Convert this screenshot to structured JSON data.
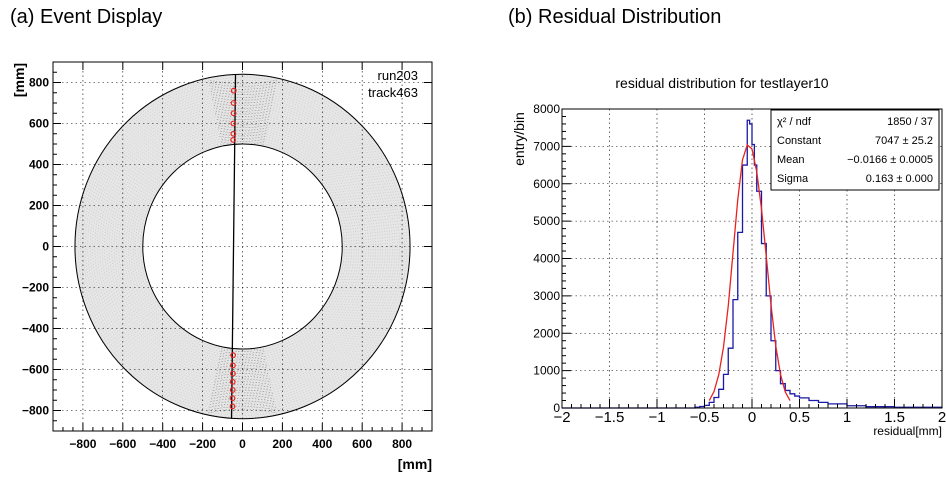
{
  "captions": {
    "a": "(a)  Event Display",
    "b": "(b) Residual Distribution"
  },
  "chart_data": [
    {
      "type": "scatter",
      "title": "",
      "xlabel": "[mm]",
      "ylabel": "[mm]",
      "xlim": [
        -950,
        950
      ],
      "ylim": [
        -900,
        900
      ],
      "xticks": [
        -800,
        -600,
        -400,
        -200,
        0,
        200,
        400,
        600,
        800
      ],
      "yticks": [
        -800,
        -600,
        -400,
        -200,
        0,
        200,
        400,
        600,
        800
      ],
      "grid": true,
      "annotations": [
        "run203",
        "track463"
      ],
      "chamber": {
        "inner_radius": 500,
        "outer_radius": 840
      },
      "track": {
        "x": [
          -35,
          -55
        ],
        "y": [
          840,
          -840
        ]
      },
      "hits": {
        "x": [
          -44,
          -45,
          -45,
          -46,
          -46,
          -47,
          -47,
          -48,
          -48,
          -49,
          -49,
          -50,
          -50
        ],
        "y": [
          760,
          700,
          650,
          600,
          550,
          520,
          -530,
          -580,
          -620,
          -660,
          -700,
          -740,
          -780
        ]
      }
    },
    {
      "type": "histogram",
      "title": "residual distribution for testlayer10",
      "xlabel": "residual[mm]",
      "ylabel": "entry/bin",
      "xlim": [
        -2,
        2
      ],
      "ylim": [
        0,
        8000
      ],
      "xticks": [
        -2,
        -1.5,
        -1,
        -0.5,
        0,
        0.5,
        1,
        1.5,
        2
      ],
      "yticks": [
        0,
        1000,
        2000,
        3000,
        4000,
        5000,
        6000,
        7000,
        8000
      ],
      "grid": true,
      "series": [
        {
          "x": [
            -0.6,
            -0.55,
            -0.5,
            -0.45,
            -0.4,
            -0.35,
            -0.3,
            -0.25,
            -0.2,
            -0.15,
            -0.1,
            -0.05,
            -0.025,
            0.0,
            0.025,
            0.05,
            0.1,
            0.15,
            0.2,
            0.25,
            0.3,
            0.35,
            0.4,
            0.45,
            0.5,
            0.6,
            0.7,
            0.8,
            1.0,
            1.2,
            1.5,
            2.0
          ],
          "y": [
            20,
            40,
            70,
            150,
            280,
            500,
            900,
            1600,
            2900,
            4700,
            6500,
            7700,
            7600,
            7050,
            6500,
            5800,
            4400,
            3000,
            1800,
            1000,
            650,
            470,
            380,
            320,
            270,
            200,
            150,
            110,
            60,
            35,
            20,
            10
          ]
        },
        {
          "x": [
            -0.45,
            -0.4,
            -0.35,
            -0.3,
            -0.25,
            -0.2,
            -0.15,
            -0.1,
            -0.05,
            0.0,
            0.05,
            0.1,
            0.15,
            0.2,
            0.25,
            0.3,
            0.35,
            0.4
          ],
          "y": [
            200,
            440,
            890,
            1630,
            2730,
            4150,
            5570,
            6640,
            7040,
            6930,
            6320,
            5330,
            4060,
            2760,
            1660,
            900,
            430,
            200
          ]
        }
      ],
      "stats_box": {
        "rows": [
          {
            "label": "χ² / ndf",
            "value": "1850 / 37"
          },
          {
            "label": "Constant",
            "value": "7047 ± 25.2"
          },
          {
            "label": "Mean",
            "value": "−0.0166 ± 0.0005"
          },
          {
            "label": "Sigma",
            "value": "0.163 ± 0.000"
          }
        ]
      },
      "colors": {
        "histogram": "#1a1aa6",
        "fit": "#e8231f"
      }
    }
  ]
}
